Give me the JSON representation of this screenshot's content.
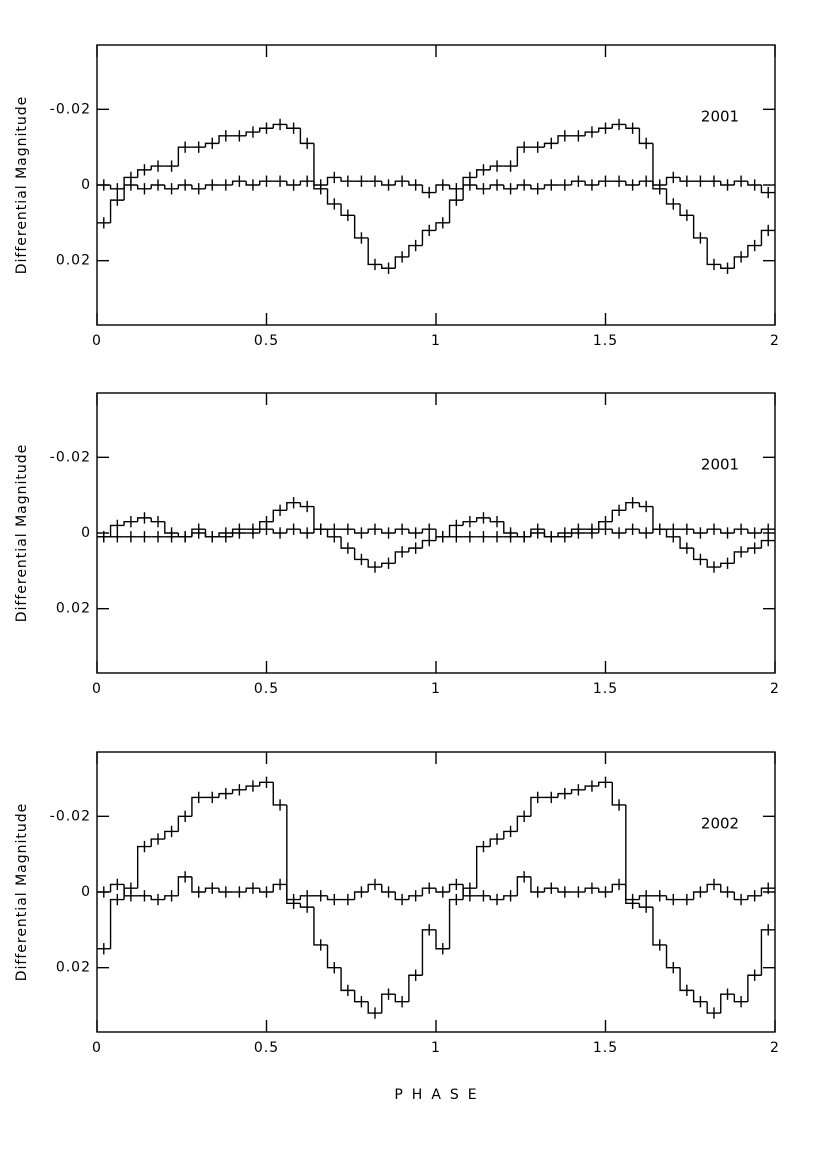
{
  "chart_data": [
    {
      "type": "step",
      "annotation": "2001",
      "y_label": "Differential Magnitude",
      "xlim": [
        0,
        2
      ],
      "xticks": [
        0,
        0.5,
        1,
        1.5,
        2
      ],
      "ylim": [
        -0.037,
        0.037
      ],
      "y_inverted": true,
      "yticks": [
        -0.02,
        0,
        0.02
      ],
      "x": [
        0.02,
        0.06,
        0.1,
        0.14,
        0.18,
        0.22,
        0.26,
        0.3,
        0.34,
        0.38,
        0.42,
        0.46,
        0.5,
        0.54,
        0.58,
        0.62,
        0.66,
        0.7,
        0.74,
        0.78,
        0.82,
        0.86,
        0.9,
        0.94,
        0.98,
        1.02,
        1.06,
        1.1,
        1.14,
        1.18,
        1.22,
        1.26,
        1.3,
        1.34,
        1.38,
        1.42,
        1.46,
        1.5,
        1.54,
        1.58,
        1.62,
        1.66,
        1.7,
        1.74,
        1.78,
        1.82,
        1.86,
        1.9,
        1.94,
        1.98
      ],
      "series": [
        {
          "color": "#000000",
          "error": 0.0015,
          "values": [
            0.01,
            0.004,
            -0.002,
            -0.004,
            -0.005,
            -0.005,
            -0.01,
            -0.01,
            -0.011,
            -0.013,
            -0.013,
            -0.014,
            -0.015,
            -0.016,
            -0.015,
            -0.011,
            0.001,
            0.005,
            0.008,
            0.014,
            0.021,
            0.022,
            0.019,
            0.016,
            0.012,
            0.01,
            0.004,
            -0.002,
            -0.004,
            -0.005,
            -0.005,
            -0.01,
            -0.01,
            -0.011,
            -0.013,
            -0.013,
            -0.014,
            -0.015,
            -0.016,
            -0.015,
            -0.011,
            0.001,
            0.005,
            0.008,
            0.014,
            0.021,
            0.022,
            0.019,
            0.016,
            0.012
          ]
        },
        {
          "color": "#000000",
          "error": 0.0015,
          "values": [
            0,
            0.001,
            0,
            0.001,
            0,
            0.001,
            0,
            0.001,
            0,
            0,
            -0.001,
            0,
            -0.001,
            -0.001,
            0,
            -0.001,
            0,
            -0.002,
            -0.001,
            -0.001,
            -0.001,
            0,
            -0.001,
            0,
            0.002,
            0,
            0.001,
            0,
            0.001,
            0,
            0.001,
            0,
            0.001,
            0,
            0,
            -0.001,
            0,
            -0.001,
            -0.001,
            0,
            -0.001,
            0,
            -0.002,
            -0.001,
            -0.001,
            -0.001,
            0,
            -0.001,
            0,
            0.002
          ]
        }
      ]
    },
    {
      "type": "step",
      "annotation": "2001",
      "y_label": "Differential Magnitude",
      "xlim": [
        0,
        2
      ],
      "xticks": [
        0,
        0.5,
        1,
        1.5,
        2
      ],
      "ylim": [
        -0.037,
        0.037
      ],
      "y_inverted": true,
      "yticks": [
        -0.02,
        0,
        0.02
      ],
      "x": [
        0.02,
        0.06,
        0.1,
        0.14,
        0.18,
        0.22,
        0.26,
        0.3,
        0.34,
        0.38,
        0.42,
        0.46,
        0.5,
        0.54,
        0.58,
        0.62,
        0.66,
        0.7,
        0.74,
        0.78,
        0.82,
        0.86,
        0.9,
        0.94,
        0.98,
        1.02,
        1.06,
        1.1,
        1.14,
        1.18,
        1.22,
        1.26,
        1.3,
        1.34,
        1.38,
        1.42,
        1.46,
        1.5,
        1.54,
        1.58,
        1.62,
        1.66,
        1.7,
        1.74,
        1.78,
        1.82,
        1.86,
        1.9,
        1.94,
        1.98
      ],
      "series": [
        {
          "color": "#000000",
          "error": 0.0015,
          "values": [
            0.001,
            -0.002,
            -0.003,
            -0.004,
            -0.003,
            0,
            0.001,
            -0.001,
            0.001,
            0,
            -0.001,
            -0.001,
            -0.003,
            -0.006,
            -0.008,
            -0.007,
            -0.001,
            0.001,
            0.004,
            0.007,
            0.009,
            0.008,
            0.005,
            0.004,
            0.002,
            0.001,
            -0.002,
            -0.003,
            -0.004,
            -0.003,
            0,
            0.001,
            -0.001,
            0.001,
            0,
            -0.001,
            -0.001,
            -0.003,
            -0.006,
            -0.008,
            -0.007,
            -0.001,
            0.001,
            0.004,
            0.007,
            0.009,
            0.008,
            0.005,
            0.004,
            0.002
          ]
        },
        {
          "color": "#000000",
          "error": 0.0015,
          "values": [
            0.001,
            0.001,
            0.001,
            0.001,
            0.001,
            0.001,
            0.001,
            0,
            0.001,
            0.001,
            0,
            0,
            -0.001,
            0,
            -0.001,
            0,
            -0.001,
            -0.001,
            -0.001,
            0,
            -0.001,
            0,
            -0.001,
            0,
            -0.001,
            0.001,
            0.001,
            0.001,
            0.001,
            0.001,
            0.001,
            0.001,
            0,
            0.001,
            0.001,
            0,
            0,
            -0.001,
            0,
            -0.001,
            0,
            -0.001,
            -0.001,
            -0.001,
            0,
            -0.001,
            0,
            -0.001,
            0,
            -0.001
          ]
        }
      ]
    },
    {
      "type": "step",
      "annotation": "2002",
      "y_label": "Differential Magnitude",
      "x_label": "PHASE",
      "xlim": [
        0,
        2
      ],
      "xticks": [
        0,
        0.5,
        1,
        1.5,
        2
      ],
      "ylim": [
        -0.037,
        0.037
      ],
      "y_inverted": true,
      "yticks": [
        -0.02,
        0,
        0.02
      ],
      "x": [
        0.02,
        0.06,
        0.1,
        0.14,
        0.18,
        0.22,
        0.26,
        0.3,
        0.34,
        0.38,
        0.42,
        0.46,
        0.5,
        0.54,
        0.58,
        0.62,
        0.66,
        0.7,
        0.74,
        0.78,
        0.82,
        0.86,
        0.9,
        0.94,
        0.98,
        1.02,
        1.06,
        1.1,
        1.14,
        1.18,
        1.22,
        1.26,
        1.3,
        1.34,
        1.38,
        1.42,
        1.46,
        1.5,
        1.54,
        1.58,
        1.62,
        1.66,
        1.7,
        1.74,
        1.78,
        1.82,
        1.86,
        1.9,
        1.94,
        1.98
      ],
      "series": [
        {
          "color": "#000000",
          "error": 0.0015,
          "values": [
            0.015,
            0.002,
            -0.001,
            -0.012,
            -0.014,
            -0.016,
            -0.02,
            -0.025,
            -0.025,
            -0.026,
            -0.027,
            -0.028,
            -0.029,
            -0.023,
            0.003,
            0.004,
            0.014,
            0.02,
            0.026,
            0.029,
            0.032,
            0.027,
            0.029,
            0.022,
            0.01,
            0.015,
            0.002,
            -0.001,
            -0.012,
            -0.014,
            -0.016,
            -0.02,
            -0.025,
            -0.025,
            -0.026,
            -0.027,
            -0.028,
            -0.029,
            -0.023,
            0.003,
            0.004,
            0.014,
            0.02,
            0.026,
            0.029,
            0.032,
            0.027,
            0.029,
            0.022,
            0.01
          ]
        },
        {
          "color": "#000000",
          "error": 0.0015,
          "values": [
            0,
            -0.002,
            0.001,
            0.001,
            0.002,
            0.001,
            -0.004,
            0,
            -0.001,
            0,
            0,
            -0.001,
            0,
            -0.002,
            0.002,
            0.001,
            0.001,
            0.002,
            0.002,
            0,
            -0.002,
            0,
            0.002,
            0.001,
            -0.001,
            0,
            -0.002,
            0.001,
            0.001,
            0.002,
            0.001,
            -0.004,
            0,
            -0.001,
            0,
            0,
            -0.001,
            0,
            -0.002,
            0.002,
            0.001,
            0.001,
            0.002,
            0.002,
            0,
            -0.002,
            0,
            0.002,
            0.001,
            -0.001
          ]
        }
      ]
    }
  ]
}
